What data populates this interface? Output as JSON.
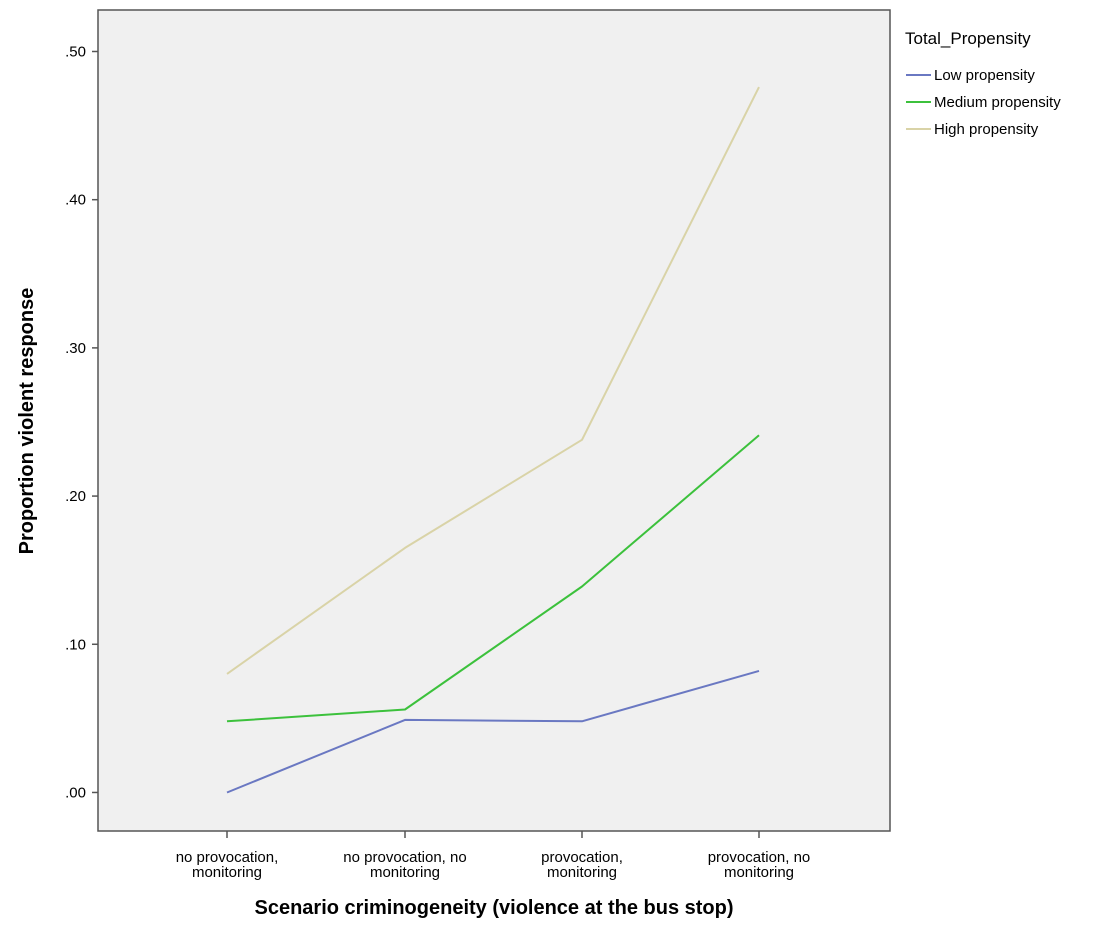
{
  "chart_data": {
    "type": "line",
    "xlabel": "Scenario criminogeneity (violence at the bus stop)",
    "ylabel": "Proportion violent response",
    "categories": [
      [
        "no provocation,",
        "monitoring"
      ],
      [
        "no provocation, no",
        "monitoring"
      ],
      [
        "provocation,",
        "monitoring"
      ],
      [
        "provocation, no",
        "monitoring"
      ]
    ],
    "ylim": [
      -0.026,
      0.528
    ],
    "yticks": [
      0.0,
      0.1,
      0.2,
      0.3,
      0.4,
      0.5
    ],
    "ytick_labels": [
      ".00",
      ".10",
      ".20",
      ".30",
      ".40",
      ".50"
    ],
    "grid": false,
    "legend": {
      "title": "Total_Propensity",
      "placement": "outside-top-right"
    },
    "series": [
      {
        "name": "Low propensity",
        "color": "#6a78c2",
        "values": [
          0.0,
          0.049,
          0.048,
          0.082
        ]
      },
      {
        "name": "Medium propensity",
        "color": "#3cc13c",
        "values": [
          0.048,
          0.056,
          0.139,
          0.241
        ]
      },
      {
        "name": "High propensity",
        "color": "#d9d3a7",
        "values": [
          0.08,
          0.165,
          0.238,
          0.476
        ]
      }
    ]
  }
}
